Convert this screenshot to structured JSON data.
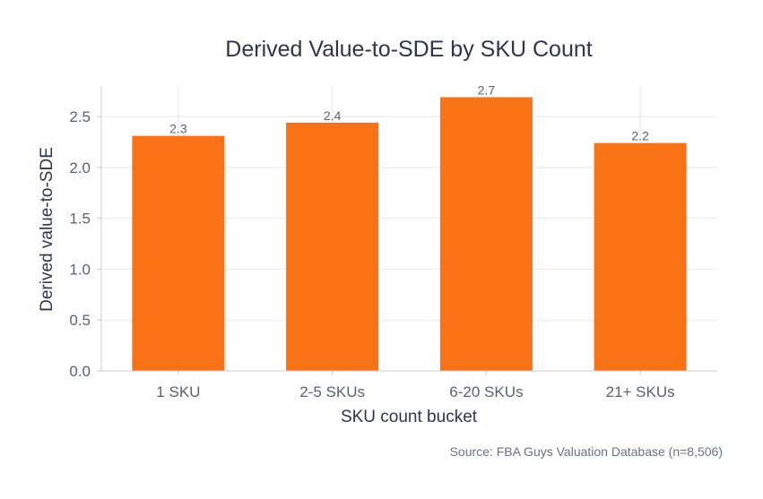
{
  "chart_data": {
    "type": "bar",
    "title": "Derived Value-to-SDE by SKU Count",
    "xlabel": "SKU count bucket",
    "ylabel": "Derived value-to-SDE",
    "categories": [
      "1 SKU",
      "2-5 SKUs",
      "6-20 SKUs",
      "21+ SKUs"
    ],
    "values": [
      2.31,
      2.44,
      2.69,
      2.24
    ],
    "data_labels": [
      "2.3",
      "2.4",
      "2.7",
      "2.2"
    ],
    "ylim": [
      0,
      2.8
    ],
    "yticks": [
      0.0,
      0.5,
      1.0,
      1.5,
      2.0,
      2.5
    ],
    "ytick_labels": [
      "0.0",
      "0.5",
      "1.0",
      "1.5",
      "2.0",
      "2.5"
    ],
    "grid": true,
    "bar_color": "#f97316",
    "source": "Source: FBA Guys Valuation Database (n=8,506)"
  }
}
